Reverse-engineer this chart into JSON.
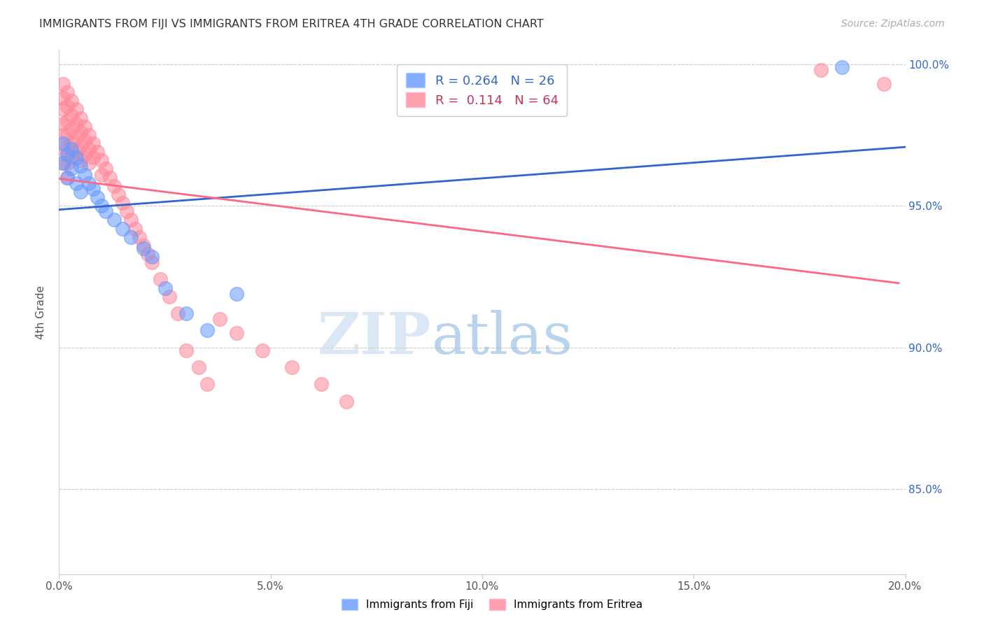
{
  "title": "IMMIGRANTS FROM FIJI VS IMMIGRANTS FROM ERITREA 4TH GRADE CORRELATION CHART",
  "source": "Source: ZipAtlas.com",
  "ylabel_label": "4th Grade",
  "xlim": [
    0.0,
    0.2
  ],
  "ylim": [
    0.82,
    1.005
  ],
  "xtick_labels": [
    "0.0%",
    "",
    "5.0%",
    "",
    "10.0%",
    "",
    "15.0%",
    "",
    "20.0%"
  ],
  "xtick_vals": [
    0.0,
    0.025,
    0.05,
    0.075,
    0.1,
    0.125,
    0.15,
    0.175,
    0.2
  ],
  "xtick_display_labels": [
    "0.0%",
    "5.0%",
    "10.0%",
    "15.0%",
    "20.0%"
  ],
  "xtick_display_vals": [
    0.0,
    0.05,
    0.1,
    0.15,
    0.2
  ],
  "ytick_labels": [
    "85.0%",
    "90.0%",
    "95.0%",
    "100.0%"
  ],
  "ytick_vals": [
    0.85,
    0.9,
    0.95,
    1.0
  ],
  "fiji_color": "#6699FF",
  "eritrea_color": "#FF8899",
  "fiji_line_color": "#3366CC",
  "eritrea_line_color": "#FF6688",
  "legend_r_fiji": "R = 0.264",
  "legend_n_fiji": "N = 26",
  "legend_r_eritrea": "R =  0.114",
  "legend_n_eritrea": "N = 64",
  "fiji_x": [
    0.001,
    0.001,
    0.002,
    0.002,
    0.003,
    0.003,
    0.004,
    0.004,
    0.005,
    0.005,
    0.006,
    0.007,
    0.008,
    0.009,
    0.01,
    0.011,
    0.013,
    0.015,
    0.017,
    0.02,
    0.022,
    0.025,
    0.03,
    0.035,
    0.042,
    0.185
  ],
  "fiji_y": [
    0.972,
    0.965,
    0.968,
    0.96,
    0.97,
    0.963,
    0.967,
    0.958,
    0.964,
    0.955,
    0.961,
    0.958,
    0.956,
    0.953,
    0.95,
    0.948,
    0.945,
    0.942,
    0.939,
    0.935,
    0.932,
    0.921,
    0.912,
    0.906,
    0.919,
    0.999
  ],
  "eritrea_x": [
    0.001,
    0.001,
    0.001,
    0.001,
    0.001,
    0.001,
    0.001,
    0.002,
    0.002,
    0.002,
    0.002,
    0.002,
    0.002,
    0.002,
    0.003,
    0.003,
    0.003,
    0.003,
    0.003,
    0.004,
    0.004,
    0.004,
    0.004,
    0.005,
    0.005,
    0.005,
    0.005,
    0.006,
    0.006,
    0.006,
    0.007,
    0.007,
    0.007,
    0.008,
    0.008,
    0.009,
    0.01,
    0.01,
    0.011,
    0.012,
    0.013,
    0.014,
    0.015,
    0.016,
    0.017,
    0.018,
    0.019,
    0.02,
    0.021,
    0.022,
    0.024,
    0.026,
    0.028,
    0.03,
    0.033,
    0.035,
    0.038,
    0.042,
    0.048,
    0.055,
    0.062,
    0.068,
    0.18,
    0.195
  ],
  "eritrea_y": [
    0.993,
    0.988,
    0.984,
    0.979,
    0.975,
    0.97,
    0.965,
    0.99,
    0.985,
    0.98,
    0.975,
    0.97,
    0.965,
    0.96,
    0.987,
    0.982,
    0.977,
    0.972,
    0.967,
    0.984,
    0.979,
    0.974,
    0.969,
    0.981,
    0.976,
    0.971,
    0.966,
    0.978,
    0.973,
    0.968,
    0.975,
    0.97,
    0.965,
    0.972,
    0.967,
    0.969,
    0.966,
    0.961,
    0.963,
    0.96,
    0.957,
    0.954,
    0.951,
    0.948,
    0.945,
    0.942,
    0.939,
    0.936,
    0.933,
    0.93,
    0.924,
    0.918,
    0.912,
    0.899,
    0.893,
    0.887,
    0.91,
    0.905,
    0.899,
    0.893,
    0.887,
    0.881,
    0.998,
    0.993
  ],
  "watermark_zip": "ZIP",
  "watermark_atlas": "atlas",
  "background_color": "#FFFFFF"
}
